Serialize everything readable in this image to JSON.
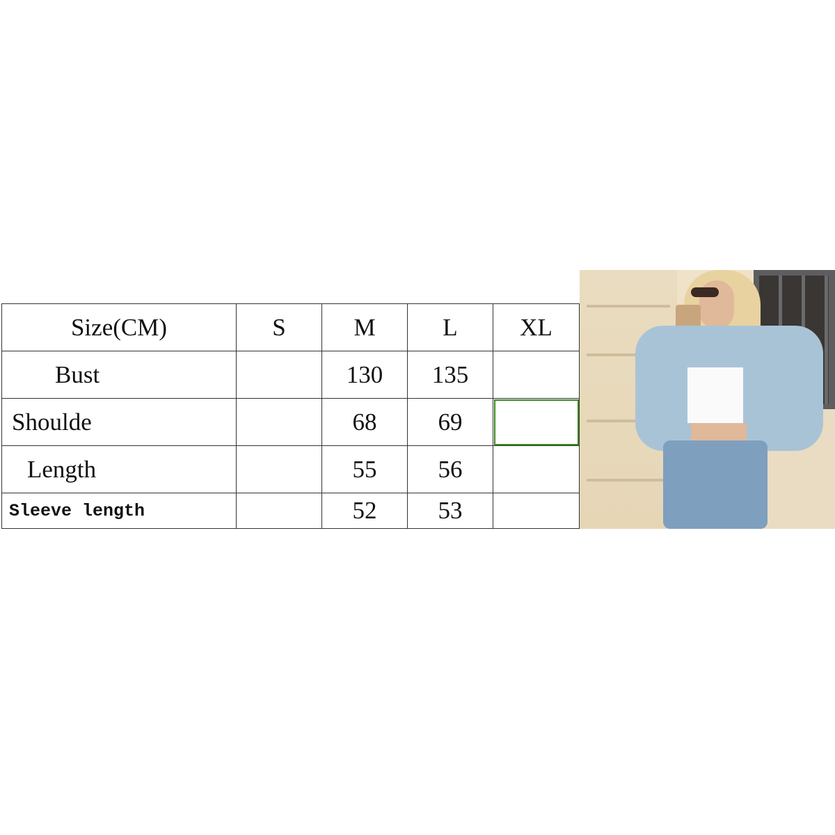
{
  "size_chart": {
    "header": [
      "Size(CM)",
      "S",
      "M",
      "L",
      "XL"
    ],
    "rows": [
      {
        "label": "Bust",
        "values": [
          "",
          "130",
          "135",
          ""
        ]
      },
      {
        "label": "Shoulde",
        "values": [
          "",
          "68",
          "69",
          ""
        ]
      },
      {
        "label": "Length",
        "values": [
          "",
          "55",
          "56",
          ""
        ]
      },
      {
        "label": "Sleeve length",
        "values": [
          "",
          "52",
          "53",
          ""
        ]
      }
    ],
    "selected_cell_color": "#3a8a1f"
  },
  "product_photo": {
    "subject": "model-in-cropped-studded-denim-jacket"
  }
}
